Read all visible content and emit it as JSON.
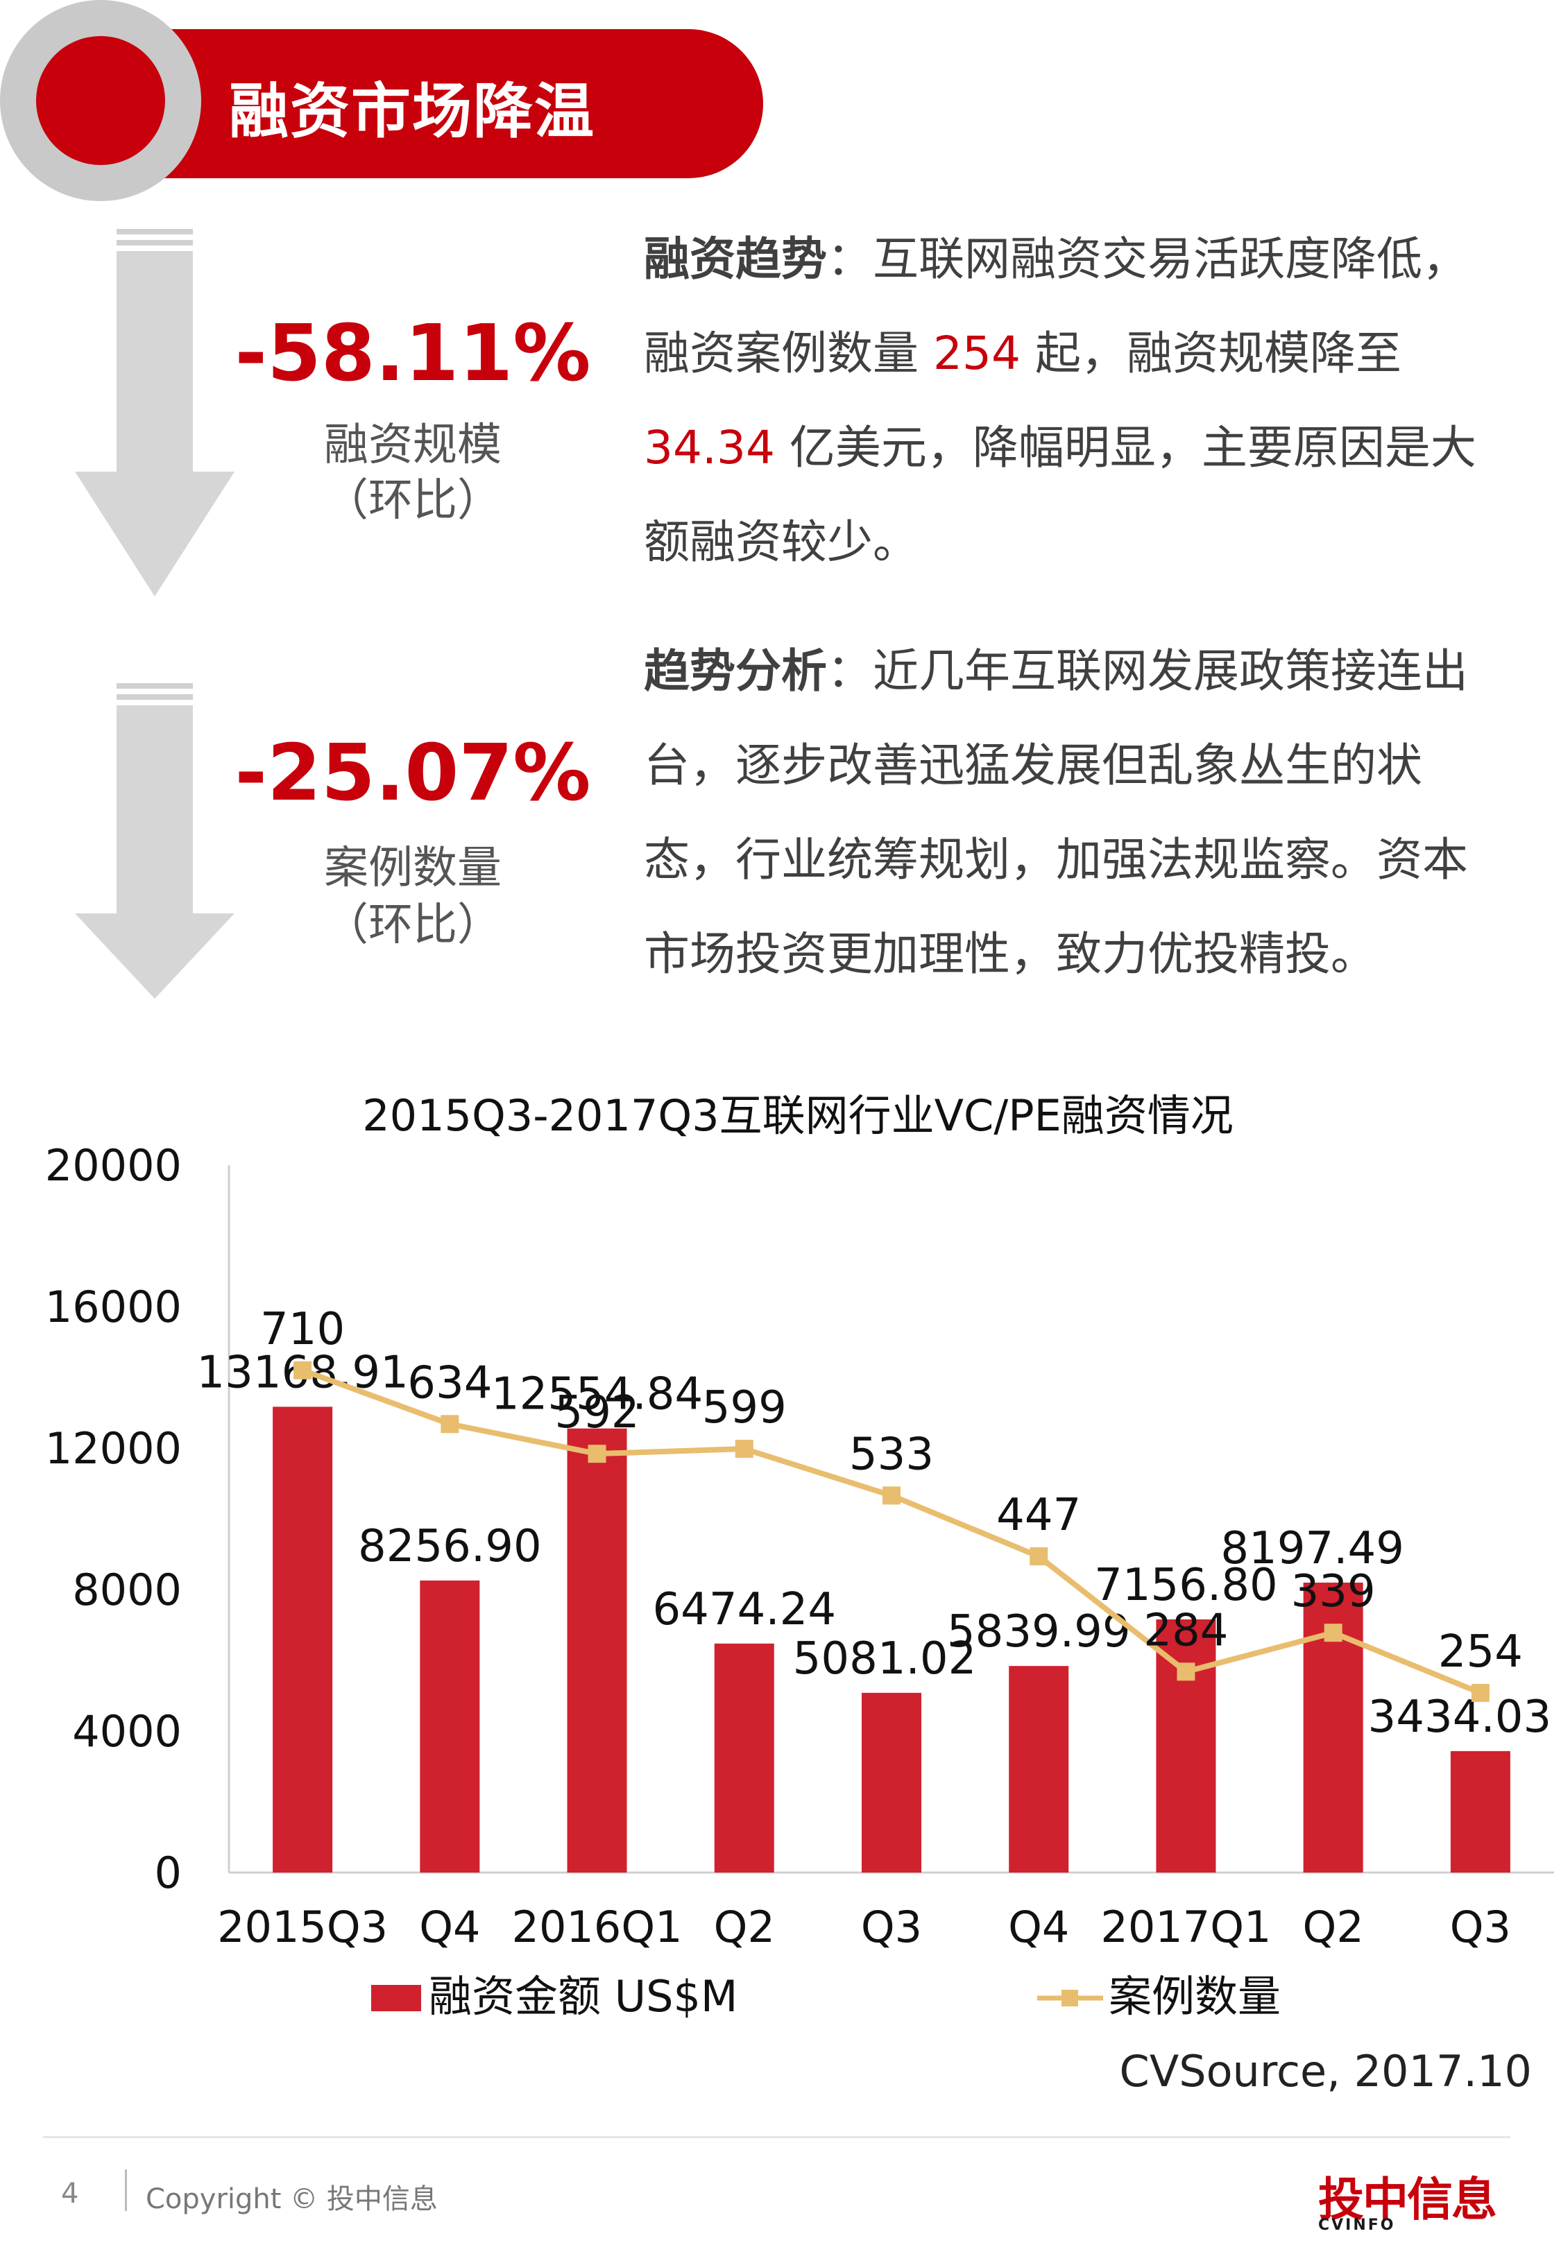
{
  "header": {
    "title": "融资市场降温"
  },
  "stats": [
    {
      "value": "-58.11%",
      "label": "融资规模",
      "sub": "（环比）"
    },
    {
      "value": "-25.07%",
      "label": "案例数量",
      "sub": "（环比）"
    }
  ],
  "trend": {
    "heading": "融资趋势",
    "sep": "：",
    "t1": "互联网融资交易活跃度降低，融资案例数量 ",
    "count": "254",
    "t2": " 起，融资规模降至 ",
    "amount": "34.34",
    "t3": " 亿美元，降幅明显，主要原因是大额融资较少。"
  },
  "analysis": {
    "heading": "趋势分析",
    "sep": "：",
    "text": "近几年互联网发展政策接连出台，逐步改善迅猛发展但乱象丛生的状态，行业统筹规划，加强法规监察。资本市场投资更加理性，致力优投精投。"
  },
  "chart_data": {
    "type": "bar",
    "title": "2015Q3-2017Q3互联网行业VC/PE融资情况",
    "categories": [
      "2015Q3",
      "Q4",
      "2016Q1",
      "Q2",
      "Q3",
      "Q4",
      "2017Q1",
      "Q2",
      "Q3"
    ],
    "ylim": [
      0,
      20000
    ],
    "yticks": [
      0,
      4000,
      8000,
      12000,
      16000,
      20000
    ],
    "series": [
      {
        "name": "融资金额 US$M",
        "type": "bar",
        "color": "#d0212e",
        "values": [
          13168.91,
          8256.9,
          12554.84,
          6474.24,
          5081.02,
          5839.99,
          7156.8,
          8197.49,
          3434.03
        ],
        "labels": [
          "13168.91",
          "8256.90",
          "12554.84",
          "6474.24",
          "5081.02",
          "5839.99",
          "7156.80",
          "8197.49",
          "3434.03"
        ]
      },
      {
        "name": "案例数量",
        "type": "line",
        "color": "#e8bd6e",
        "values": [
          710,
          634,
          592,
          599,
          533,
          447,
          284,
          339,
          254
        ]
      }
    ],
    "legend_position": "bottom"
  },
  "source": "CVSource, 2017.10",
  "footer": {
    "page": "4",
    "copyright": "Copyright © 投中信息",
    "logo_text": "投中信息",
    "logo_sub": "CVINFO"
  }
}
